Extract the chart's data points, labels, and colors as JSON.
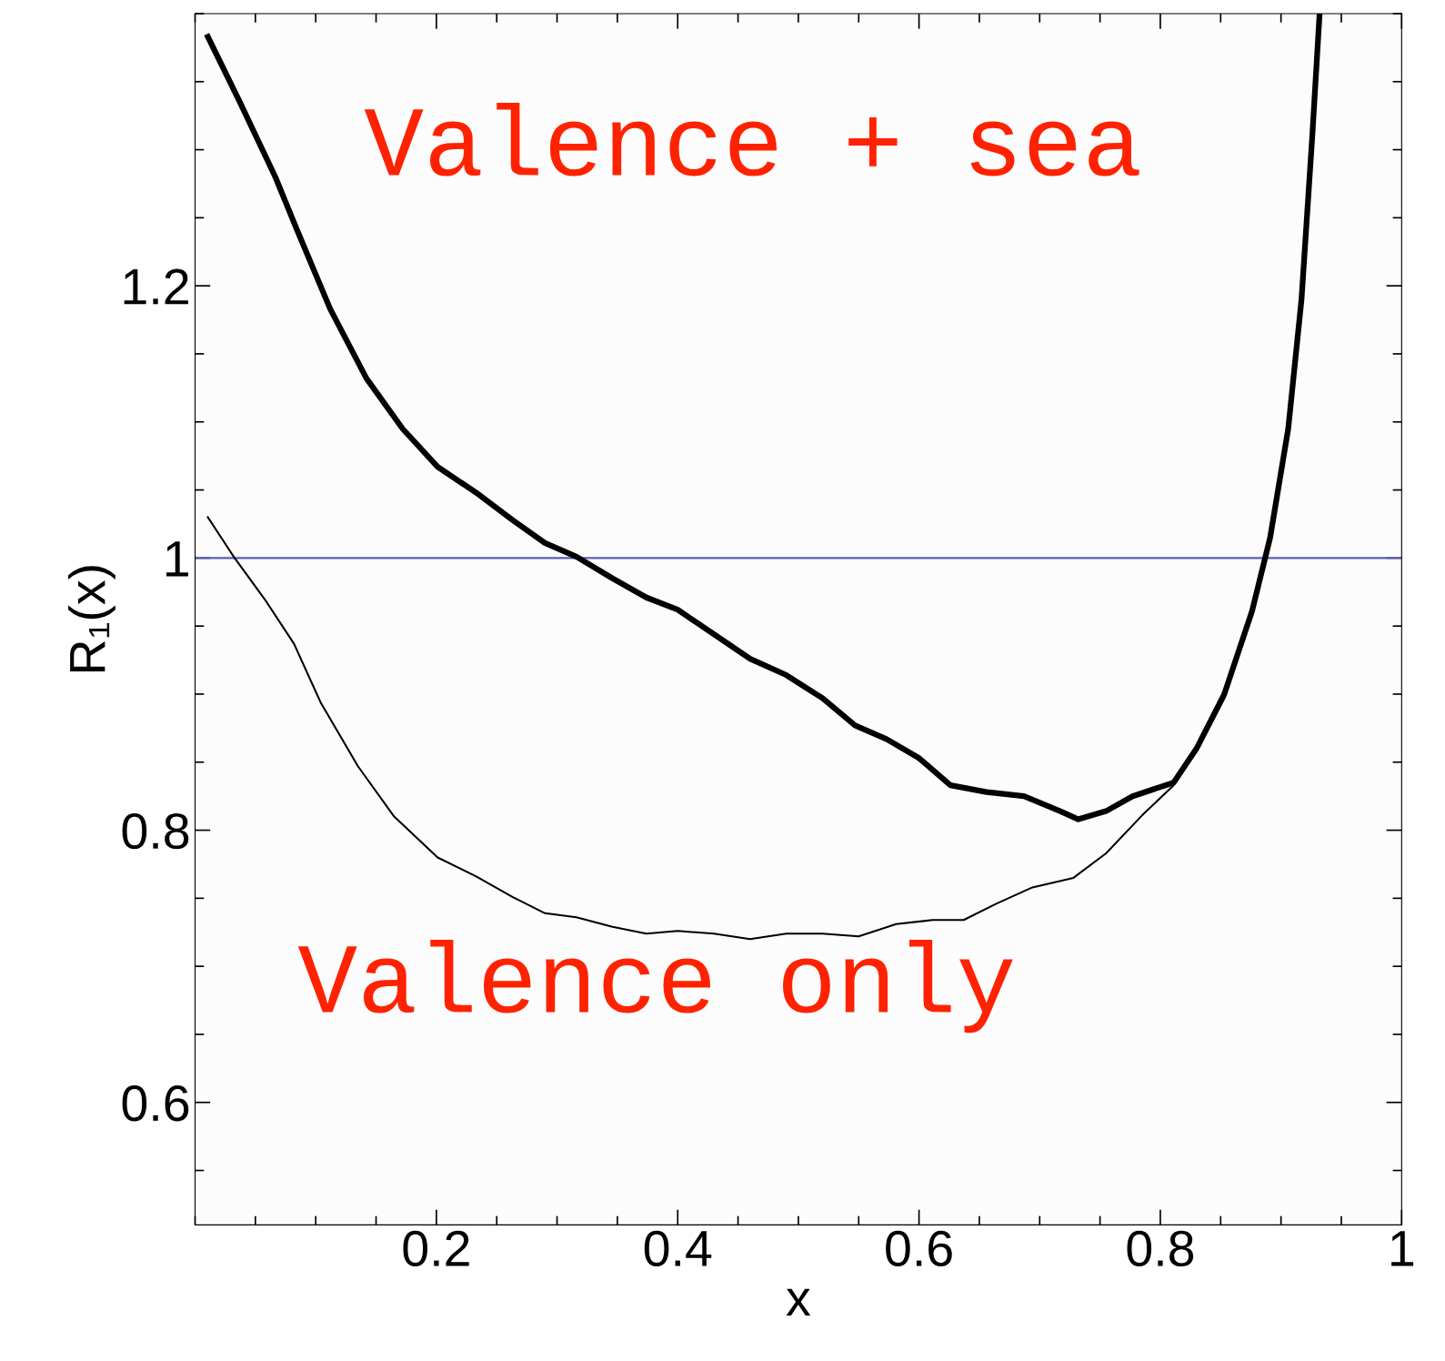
{
  "chart_data": {
    "type": "line",
    "xlabel": "x",
    "ylabel": "R₁(x)",
    "xlim": [
      0,
      1
    ],
    "ylim": [
      0.51,
      1.4
    ],
    "xticks": [
      0.2,
      0.4,
      0.6,
      0.8,
      1
    ],
    "yticks": [
      0.6,
      0.8,
      1,
      1.2
    ],
    "grid": false,
    "annotations": [
      "Valence + sea",
      "Valence only"
    ],
    "marker": "none",
    "line_style": "solid",
    "ref_lines": [
      {
        "axis": "y",
        "value": 1,
        "color": "#5b5fb0"
      }
    ],
    "series": [
      {
        "color": "#000000",
        "x": [
          0.0106,
          0.036,
          0.0665,
          0.085,
          0.112,
          0.142,
          0.172,
          0.201,
          0.233,
          0.263,
          0.29,
          0.316,
          0.346,
          0.374,
          0.4,
          0.43,
          0.46,
          0.49,
          0.52,
          0.547,
          0.573,
          0.6,
          0.626,
          0.656,
          0.687,
          0.717,
          0.732,
          0.755,
          0.777,
          0.811,
          0.83,
          0.853,
          0.876,
          0.891,
          0.906,
          0.917,
          0.926,
          0.932
        ],
        "values": [
          1.383,
          1.337,
          1.28,
          1.24,
          1.183,
          1.132,
          1.095,
          1.067,
          1.048,
          1.028,
          1.011,
          1.001,
          0.985,
          0.971,
          0.962,
          0.944,
          0.926,
          0.914,
          0.897,
          0.877,
          0.867,
          0.853,
          0.833,
          0.828,
          0.825,
          0.814,
          0.808,
          0.814,
          0.825,
          0.835,
          0.86,
          0.9,
          0.961,
          1.015,
          1.095,
          1.19,
          1.311,
          1.4
        ]
      },
      {
        "color": "#000000",
        "x": [
          0.0106,
          0.032,
          0.059,
          0.082,
          0.104,
          0.135,
          0.165,
          0.201,
          0.233,
          0.263,
          0.29,
          0.316,
          0.346,
          0.374,
          0.4,
          0.43,
          0.46,
          0.49,
          0.52,
          0.55,
          0.581,
          0.611,
          0.637,
          0.664,
          0.694,
          0.728,
          0.755,
          0.785,
          0.811,
          0.83,
          0.853,
          0.876,
          0.891,
          0.906,
          0.917,
          0.926,
          0.932
        ],
        "values": [
          1.03,
          1.001,
          0.968,
          0.937,
          0.894,
          0.847,
          0.81,
          0.78,
          0.766,
          0.751,
          0.739,
          0.736,
          0.729,
          0.724,
          0.726,
          0.724,
          0.72,
          0.724,
          0.724,
          0.722,
          0.731,
          0.734,
          0.734,
          0.746,
          0.758,
          0.765,
          0.783,
          0.811,
          0.833,
          0.858,
          0.897,
          0.958,
          1.012,
          1.092,
          1.187,
          1.308,
          1.4
        ]
      }
    ]
  }
}
